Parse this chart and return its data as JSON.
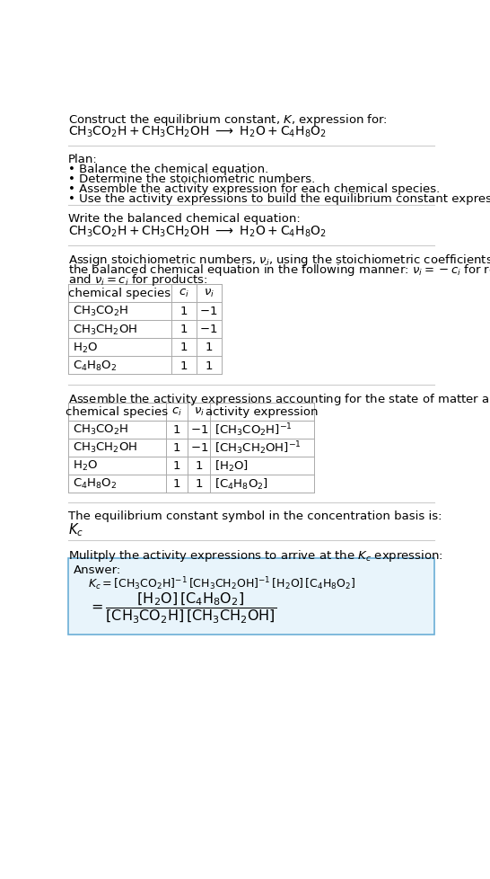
{
  "bg_color": "#ffffff",
  "text_color": "#000000",
  "title_line1": "Construct the equilibrium constant, $K$, expression for:",
  "title_line2_parts": [
    "$\\mathrm{CH_3CO_2H + CH_3CH_2OH}$",
    " $\\longrightarrow$ ",
    "$\\mathrm{H_2O + C_4H_8O_2}$"
  ],
  "plan_header": "Plan:",
  "plan_items": [
    "• Balance the chemical equation.",
    "• Determine the stoichiometric numbers.",
    "• Assemble the activity expression for each chemical species.",
    "• Use the activity expressions to build the equilibrium constant expression."
  ],
  "balanced_eq_header": "Write the balanced chemical equation:",
  "stoich_intro": "Assign stoichiometric numbers, $\\nu_i$, using the stoichiometric coefficients, $c_i$, from\nthe balanced chemical equation in the following manner: $\\nu_i = -c_i$ for reactants\nand $\\nu_i = c_i$ for products:",
  "table1_headers": [
    "chemical species",
    "$c_i$",
    "$\\nu_i$"
  ],
  "table1_rows": [
    [
      "$\\mathrm{CH_3CO_2H}$",
      "1",
      "$-1$"
    ],
    [
      "$\\mathrm{CH_3CH_2OH}$",
      "1",
      "$-1$"
    ],
    [
      "$\\mathrm{H_2O}$",
      "1",
      "$1$"
    ],
    [
      "$\\mathrm{C_4H_8O_2}$",
      "1",
      "$1$"
    ]
  ],
  "activity_header": "Assemble the activity expressions accounting for the state of matter and $\\nu_i$:",
  "table2_headers": [
    "chemical species",
    "$c_i$",
    "$\\nu_i$",
    "activity expression"
  ],
  "table2_rows": [
    [
      "$\\mathrm{CH_3CO_2H}$",
      "1",
      "$-1$",
      "$[\\mathrm{CH_3CO_2H}]^{-1}$"
    ],
    [
      "$\\mathrm{CH_3CH_2OH}$",
      "1",
      "$-1$",
      "$[\\mathrm{CH_3CH_2OH}]^{-1}$"
    ],
    [
      "$\\mathrm{H_2O}$",
      "1",
      "$1$",
      "$[\\mathrm{H_2O}]$"
    ],
    [
      "$\\mathrm{C_4H_8O_2}$",
      "1",
      "$1$",
      "$[\\mathrm{C_4H_8O_2}]$"
    ]
  ],
  "kc_header": "The equilibrium constant symbol in the concentration basis is:",
  "kc_symbol": "$K_c$",
  "multiply_header": "Mulitply the activity expressions to arrive at the $K_c$ expression:",
  "answer_label": "Answer:",
  "answer_line1": "$K_c = [\\mathrm{CH_3CO_2H}]^{-1}\\,[\\mathrm{CH_3CH_2OH}]^{-1}\\,[\\mathrm{H_2O}]\\,[\\mathrm{C_4H_8O_2}]$",
  "answer_eq": "$= \\dfrac{[\\mathrm{H_2O}]\\,[\\mathrm{C_4H_8O_2}]}{[\\mathrm{CH_3CO_2H}]\\,[\\mathrm{CH_3CH_2OH}]}$",
  "answer_box_facecolor": "#e8f4fb",
  "answer_box_edgecolor": "#6baed6",
  "sep_color": "#cccccc",
  "table_line_color": "#aaaaaa",
  "figwidth": 5.46,
  "figheight": 9.79,
  "dpi": 100
}
